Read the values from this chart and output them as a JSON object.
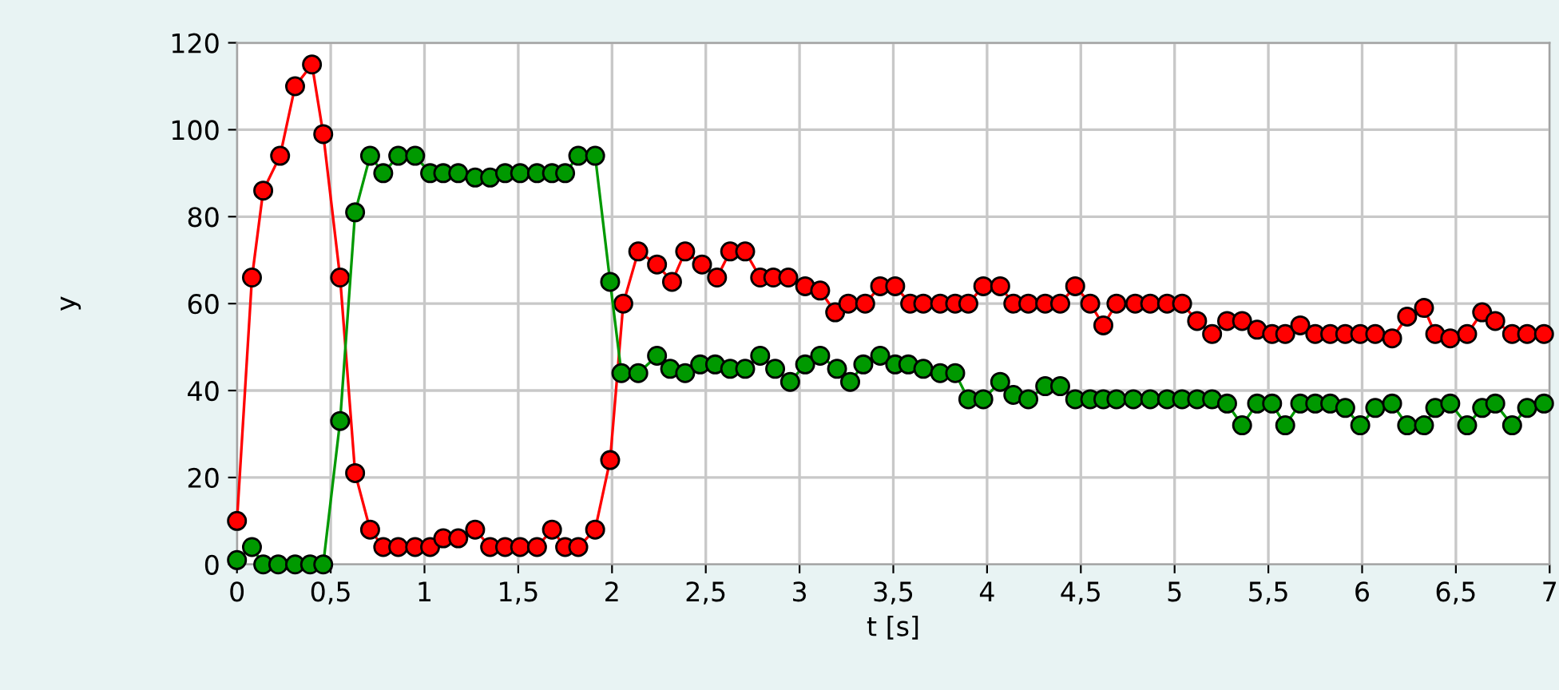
{
  "chart_data": {
    "type": "line",
    "xlabel": "t [s]",
    "ylabel": "y",
    "marker": "circle",
    "line_style": "solid",
    "grid": true,
    "xlim": [
      0,
      7
    ],
    "ylim": [
      0,
      120
    ],
    "xticks": [
      0,
      {
        "value": 0.5,
        "label": "0,5"
      },
      1,
      {
        "value": 1.5,
        "label": "1,5"
      },
      2,
      {
        "value": 2.5,
        "label": "2,5"
      },
      3,
      {
        "value": 3.5,
        "label": "3,5"
      },
      4,
      {
        "value": 4.5,
        "label": "4,5"
      },
      5,
      {
        "value": 5.5,
        "label": "5,5"
      },
      6,
      {
        "value": 6.5,
        "label": "6,5"
      },
      7
    ],
    "yticks": [
      0,
      20,
      40,
      60,
      80,
      100,
      120
    ],
    "series": [
      {
        "color": "#ff0000",
        "x": [
          0.0,
          0.08,
          0.14,
          0.23,
          0.31,
          0.4,
          0.46,
          0.55,
          0.63,
          0.71,
          0.78,
          0.86,
          0.95,
          1.03,
          1.1,
          1.18,
          1.27,
          1.35,
          1.43,
          1.51,
          1.6,
          1.68,
          1.75,
          1.82,
          1.91,
          1.99,
          2.06,
          2.14,
          2.24,
          2.32,
          2.39,
          2.48,
          2.56,
          2.63,
          2.71,
          2.79,
          2.86,
          2.94,
          3.03,
          3.11,
          3.19,
          3.26,
          3.35,
          3.43,
          3.51,
          3.59,
          3.66,
          3.75,
          3.83,
          3.9,
          3.98,
          4.07,
          4.14,
          4.22,
          4.31,
          4.39,
          4.47,
          4.55,
          4.62,
          4.69,
          4.79,
          4.87,
          4.96,
          5.04,
          5.12,
          5.2,
          5.28,
          5.36,
          5.44,
          5.52,
          5.59,
          5.67,
          5.75,
          5.83,
          5.91,
          5.99,
          6.07,
          6.16,
          6.24,
          6.33,
          6.39,
          6.47,
          6.56,
          6.64,
          6.71,
          6.8,
          6.88,
          6.97
        ],
        "values": [
          10,
          66,
          86,
          94,
          110,
          115,
          99,
          66,
          21,
          8,
          4,
          4,
          4,
          4,
          6,
          6,
          8,
          4,
          4,
          4,
          4,
          8,
          4,
          4,
          8,
          24,
          60,
          72,
          69,
          65,
          72,
          69,
          66,
          72,
          72,
          66,
          66,
          66,
          64,
          63,
          58,
          60,
          60,
          64,
          64,
          60,
          60,
          60,
          60,
          60,
          64,
          64,
          60,
          60,
          60,
          60,
          64,
          60,
          55,
          60,
          60,
          60,
          60,
          60,
          56,
          53,
          56,
          56,
          54,
          53,
          53,
          55,
          53,
          53,
          53,
          53,
          53,
          52,
          57,
          59,
          53,
          52,
          53,
          58,
          56,
          53,
          53,
          53
        ]
      },
      {
        "color": "#009900",
        "x": [
          0.0,
          0.08,
          0.14,
          0.22,
          0.31,
          0.39,
          0.46,
          0.55,
          0.63,
          0.71,
          0.78,
          0.86,
          0.95,
          1.03,
          1.1,
          1.18,
          1.27,
          1.35,
          1.43,
          1.51,
          1.6,
          1.68,
          1.75,
          1.82,
          1.91,
          1.99,
          2.05,
          2.14,
          2.24,
          2.31,
          2.39,
          2.47,
          2.55,
          2.63,
          2.71,
          2.79,
          2.87,
          2.95,
          3.03,
          3.11,
          3.2,
          3.27,
          3.34,
          3.43,
          3.51,
          3.58,
          3.66,
          3.75,
          3.83,
          3.9,
          3.98,
          4.07,
          4.14,
          4.22,
          4.31,
          4.39,
          4.47,
          4.55,
          4.62,
          4.69,
          4.78,
          4.87,
          4.96,
          5.04,
          5.12,
          5.2,
          5.28,
          5.36,
          5.44,
          5.52,
          5.59,
          5.67,
          5.75,
          5.83,
          5.91,
          5.99,
          6.07,
          6.16,
          6.24,
          6.33,
          6.39,
          6.47,
          6.56,
          6.64,
          6.71,
          6.8,
          6.88,
          6.97
        ],
        "values": [
          1,
          4,
          0,
          0,
          0,
          0,
          0,
          33,
          81,
          94,
          90,
          94,
          94,
          90,
          90,
          90,
          89,
          89,
          90,
          90,
          90,
          90,
          90,
          94,
          94,
          65,
          44,
          44,
          48,
          45,
          44,
          46,
          46,
          45,
          45,
          48,
          45,
          42,
          46,
          48,
          45,
          42,
          46,
          48,
          46,
          46,
          45,
          44,
          44,
          38,
          38,
          42,
          39,
          38,
          41,
          41,
          38,
          38,
          38,
          38,
          38,
          38,
          38,
          38,
          38,
          38,
          37,
          32,
          37,
          37,
          32,
          37,
          37,
          37,
          36,
          32,
          36,
          37,
          32,
          32,
          36,
          37,
          32,
          36,
          37,
          32,
          36,
          37
        ]
      }
    ]
  }
}
